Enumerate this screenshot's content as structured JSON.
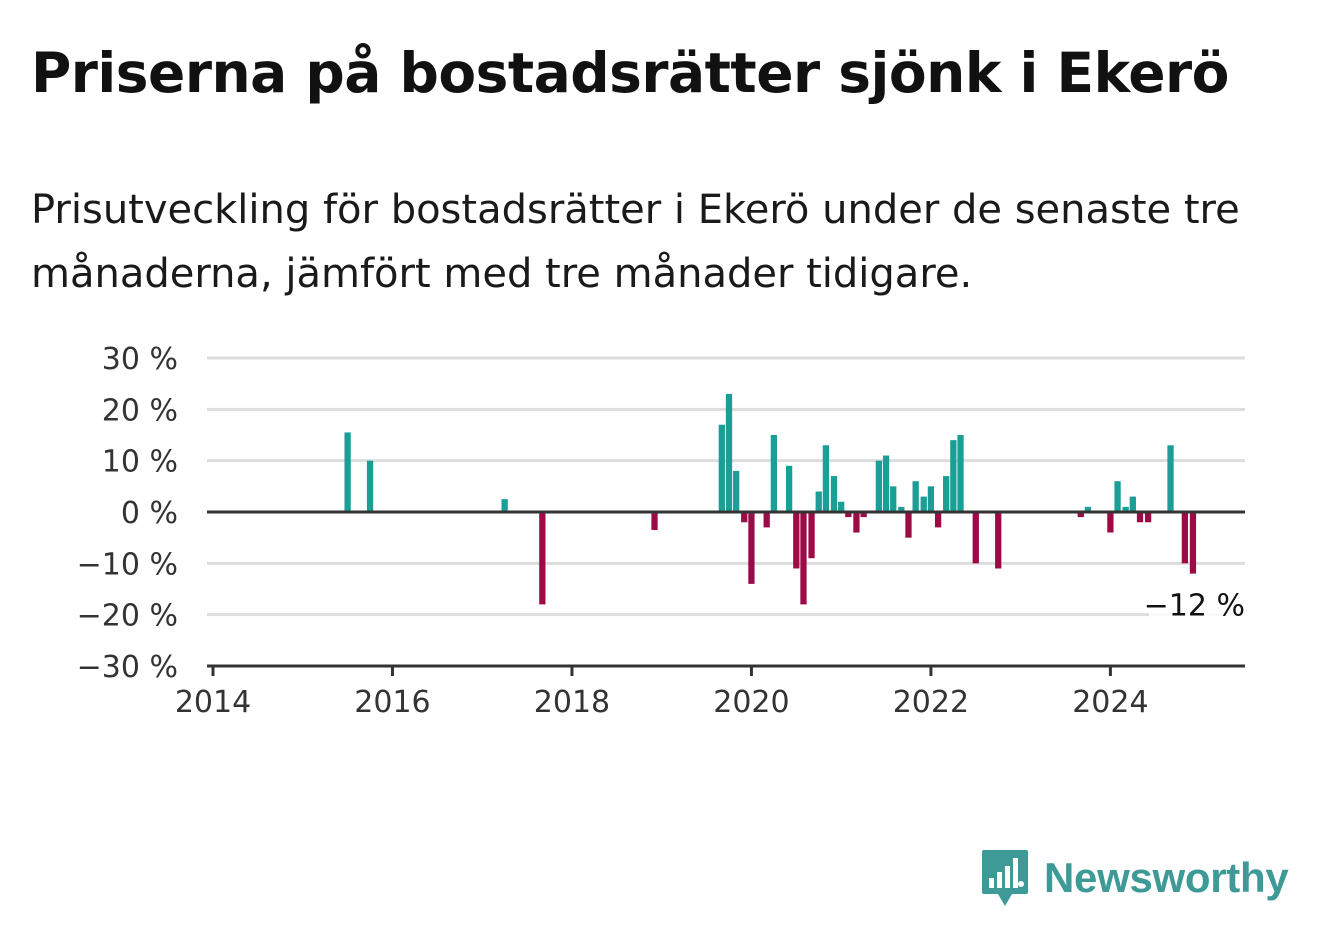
{
  "title": "Priserna på bostadsrätter sjönk i Ekerö",
  "subtitle": "Prisutveckling för bostadsrätter i Ekerö under de senaste tre månaderna, jämfört med tre månader tidigare.",
  "logo": {
    "text": "Newsworthy",
    "icon": "bar-chart-speech-bubble-icon"
  },
  "colors": {
    "positive": "#1a9e96",
    "negative": "#9c0b45",
    "grid": "#dddddd",
    "axis": "#333333"
  },
  "chart_data": {
    "type": "bar",
    "title": "Priserna på bostadsrätter sjönk i Ekerö",
    "ylabel": "",
    "xlabel": "",
    "ylim": [
      -30,
      30
    ],
    "xlim": [
      2014,
      2025.5
    ],
    "yticks": [
      {
        "value": 30,
        "label": "30 %"
      },
      {
        "value": 20,
        "label": "20 %"
      },
      {
        "value": 10,
        "label": "10 %"
      },
      {
        "value": 0,
        "label": "0 %"
      },
      {
        "value": -10,
        "label": "−10 %"
      },
      {
        "value": -20,
        "label": "−20 %"
      },
      {
        "value": -30,
        "label": "−30 %"
      }
    ],
    "xticks": [
      {
        "value": 2014,
        "label": "2014"
      },
      {
        "value": 2016,
        "label": "2016"
      },
      {
        "value": 2018,
        "label": "2018"
      },
      {
        "value": 2020,
        "label": "2020"
      },
      {
        "value": 2022,
        "label": "2022"
      },
      {
        "value": 2024,
        "label": "2024"
      }
    ],
    "grid": true,
    "bar_width_years": 0.07,
    "annotation": {
      "text": "−12 %",
      "x": 2024.92,
      "y": -12
    },
    "x": [
      2015.5,
      2015.75,
      2017.25,
      2017.67,
      2018.92,
      2019.67,
      2019.75,
      2019.83,
      2019.92,
      2020.0,
      2020.17,
      2020.25,
      2020.42,
      2020.5,
      2020.58,
      2020.67,
      2020.75,
      2020.83,
      2020.92,
      2021.0,
      2021.08,
      2021.17,
      2021.25,
      2021.42,
      2021.5,
      2021.58,
      2021.67,
      2021.75,
      2021.83,
      2021.92,
      2022.0,
      2022.08,
      2022.17,
      2022.25,
      2022.33,
      2022.5,
      2022.75,
      2023.67,
      2023.75,
      2024.0,
      2024.08,
      2024.17,
      2024.25,
      2024.33,
      2024.42,
      2024.67,
      2024.83,
      2024.92
    ],
    "values": [
      15.5,
      10,
      2.5,
      -18,
      -3.5,
      17,
      23,
      8,
      -2,
      -14,
      -3,
      15,
      9,
      -11,
      -18,
      -9,
      4,
      13,
      7,
      2,
      -1,
      -4,
      -1,
      10,
      11,
      5,
      1,
      -5,
      6,
      3,
      5,
      -3,
      7,
      14,
      15,
      -10,
      -11,
      -1,
      1,
      -4,
      6,
      1,
      3,
      -2,
      -2,
      13,
      -10,
      -12
    ]
  }
}
